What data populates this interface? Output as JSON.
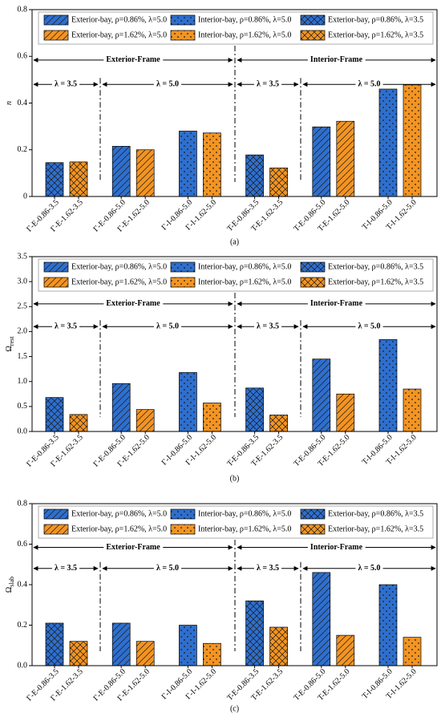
{
  "chart_data": [
    {
      "type": "bar",
      "panel_label": "(a)",
      "y_label": [
        "n"
      ],
      "categories": [
        "Γ-E-0.86-3.5",
        "Γ-E-1.62-3.5",
        "Γ-E-0.86-5.0",
        "Γ-E-1.62-5.0",
        "Γ-I-0.86-5.0",
        "Γ-I-1.62-5.0",
        "T-E-0.86-3.5",
        "T-E-1.62-3.5",
        "T-E-0.86-5.0",
        "T-E-1.62-5.0",
        "T-I-0.86-5.0",
        "T-I-1.62-5.0"
      ],
      "series": [
        {
          "name": "Exterior-bay, ρ=0.86%, λ=5.0",
          "color": "#2e6fce",
          "hatch": "/",
          "values": [
            null,
            null,
            0.215,
            null,
            null,
            null,
            null,
            null,
            0.298,
            null,
            null,
            null
          ]
        },
        {
          "name": "Interior-bay, ρ=0.86%, λ=5.0",
          "color": "#2e6fce",
          "hatch": ".",
          "values": [
            null,
            null,
            null,
            null,
            0.28,
            null,
            null,
            null,
            null,
            null,
            0.46,
            null
          ]
        },
        {
          "name": "Exterior-bay, ρ=0.86%, λ=3.5",
          "color": "#2e6fce",
          "hatch": "x",
          "values": [
            0.145,
            null,
            null,
            null,
            null,
            null,
            0.178,
            null,
            null,
            null,
            null,
            null
          ]
        },
        {
          "name": "Exterior-bay, ρ=1.62%, λ=5.0",
          "color": "#f39422",
          "hatch": "/",
          "values": [
            null,
            null,
            null,
            0.2,
            null,
            null,
            null,
            null,
            null,
            0.322,
            null,
            null
          ]
        },
        {
          "name": "Interior-bay, ρ=1.62%, λ=5.0",
          "color": "#f39422",
          "hatch": ".",
          "values": [
            null,
            null,
            null,
            null,
            null,
            0.272,
            null,
            null,
            null,
            null,
            null,
            0.478
          ]
        },
        {
          "name": "Exterior-bay, ρ=1.62%, λ=3.5",
          "color": "#f39422",
          "hatch": "x",
          "values": [
            null,
            0.148,
            null,
            null,
            null,
            null,
            null,
            0.122,
            null,
            null,
            null,
            null
          ]
        }
      ],
      "ylim": [
        0,
        0.8
      ],
      "yticks": [
        0,
        0.2,
        0.4,
        0.6,
        0.8
      ],
      "annotations": {
        "frames": [
          "Exterior-Frame",
          "Interior-Frame"
        ],
        "lambdas": [
          "λ = 3.5",
          "λ = 5.0",
          "λ = 3.5",
          "λ = 5.0"
        ]
      }
    },
    {
      "type": "bar",
      "panel_label": "(b)",
      "y_label": [
        "Ω",
        "rest"
      ],
      "categories": [
        "Γ-E-0.86-3.5",
        "Γ-E-1.62-3.5",
        "Γ-E-0.86-5.0",
        "Γ-E-1.62-5.0",
        "Γ-I-0.86-5.0",
        "Γ-I-1.62-5.0",
        "T-E-0.86-3.5",
        "T-E-1.62-3.5",
        "T-E-0.86-5.0",
        "T-E-1.62-5.0",
        "T-I-0.86-5.0",
        "T-I-1.62-5.0"
      ],
      "series": [
        {
          "name": "Exterior-bay, ρ=0.86%, λ=5.0",
          "color": "#2e6fce",
          "hatch": "/",
          "values": [
            null,
            null,
            0.96,
            null,
            null,
            null,
            null,
            null,
            1.45,
            null,
            null,
            null
          ]
        },
        {
          "name": "Interior-bay, ρ=0.86%, λ=5.0",
          "color": "#2e6fce",
          "hatch": ".",
          "values": [
            null,
            null,
            null,
            null,
            1.18,
            null,
            null,
            null,
            null,
            null,
            1.84,
            null
          ]
        },
        {
          "name": "Exterior-bay, ρ=0.86%, λ=3.5",
          "color": "#2e6fce",
          "hatch": "x",
          "values": [
            0.68,
            null,
            null,
            null,
            null,
            null,
            0.87,
            null,
            null,
            null,
            null,
            null
          ]
        },
        {
          "name": "Exterior-bay, ρ=1.62%, λ=5.0",
          "color": "#f39422",
          "hatch": "/",
          "values": [
            null,
            null,
            null,
            0.44,
            null,
            null,
            null,
            null,
            null,
            0.75,
            null,
            null
          ]
        },
        {
          "name": "Interior-bay, ρ=1.62%, λ=5.0",
          "color": "#f39422",
          "hatch": ".",
          "values": [
            null,
            null,
            null,
            null,
            null,
            0.57,
            null,
            null,
            null,
            null,
            null,
            0.85
          ]
        },
        {
          "name": "Exterior-bay, ρ=1.62%, λ=3.5",
          "color": "#f39422",
          "hatch": "x",
          "values": [
            null,
            0.34,
            null,
            null,
            null,
            null,
            null,
            0.33,
            null,
            null,
            null,
            null
          ]
        }
      ],
      "ylim": [
        0,
        3.5
      ],
      "yticks": [
        {
          "value": 0,
          "label": "0.0"
        },
        0.5,
        {
          "value": 1,
          "label": "1.0"
        },
        1.5,
        {
          "value": 2,
          "label": "2.0"
        },
        2.5,
        {
          "value": 3,
          "label": "3.0"
        },
        3.5
      ],
      "annotations": {
        "frames": [
          "Exterior-Frame",
          "Interior-Frame"
        ],
        "lambdas": [
          "λ = 3.5",
          "λ = 5.0",
          "λ = 3.5",
          "λ = 5.0"
        ]
      }
    },
    {
      "type": "bar",
      "panel_label": "(c)",
      "y_label": [
        "Ω",
        "slab"
      ],
      "categories": [
        "Γ-E-0.86-3.5",
        "Γ-E-1.62-3.5",
        "Γ-E-0.86-5.0",
        "Γ-E-1.62-5.0",
        "Γ-I-0.86-5.0",
        "Γ-I-1.62-5.0",
        "T-E-0.86-3.5",
        "T-E-1.62-3.5",
        "T-E-0.86-5.0",
        "T-E-1.62-5.0",
        "T-I-0.86-5.0",
        "T-I-1.62-5.0"
      ],
      "series": [
        {
          "name": "Exterior-bay, ρ=0.86%, λ=5.0",
          "color": "#2e6fce",
          "hatch": "/",
          "values": [
            null,
            null,
            0.21,
            null,
            null,
            null,
            null,
            null,
            0.46,
            null,
            null,
            null
          ]
        },
        {
          "name": "Interior-bay, ρ=0.86%, λ=5.0",
          "color": "#2e6fce",
          "hatch": ".",
          "values": [
            null,
            null,
            null,
            null,
            0.2,
            null,
            null,
            null,
            null,
            null,
            0.4,
            null
          ]
        },
        {
          "name": "Exterior-bay, ρ=0.86%, λ=3.5",
          "color": "#2e6fce",
          "hatch": "x",
          "values": [
            0.21,
            null,
            null,
            null,
            null,
            null,
            0.32,
            null,
            null,
            null,
            null,
            null
          ]
        },
        {
          "name": "Exterior-bay, ρ=1.62%, λ=5.0",
          "color": "#f39422",
          "hatch": "/",
          "values": [
            null,
            null,
            null,
            0.12,
            null,
            null,
            null,
            null,
            null,
            0.15,
            null,
            null
          ]
        },
        {
          "name": "Interior-bay, ρ=1.62%, λ=5.0",
          "color": "#f39422",
          "hatch": ".",
          "values": [
            null,
            null,
            null,
            null,
            null,
            0.11,
            null,
            null,
            null,
            null,
            null,
            0.14
          ]
        },
        {
          "name": "Exterior-bay, ρ=1.62%, λ=3.5",
          "color": "#f39422",
          "hatch": "x",
          "values": [
            null,
            0.12,
            null,
            null,
            null,
            null,
            null,
            0.19,
            null,
            null,
            null,
            null
          ]
        }
      ],
      "ylim": [
        0,
        0.8
      ],
      "yticks": [
        {
          "value": 0,
          "label": "0.0"
        },
        0.2,
        0.4,
        0.6,
        0.8
      ],
      "annotations": {
        "frames": [
          "Exterior-Frame",
          "Interior-Frame"
        ],
        "lambdas": [
          "λ = 3.5",
          "λ = 5.0",
          "λ = 3.5",
          "λ = 5.0"
        ]
      }
    }
  ]
}
